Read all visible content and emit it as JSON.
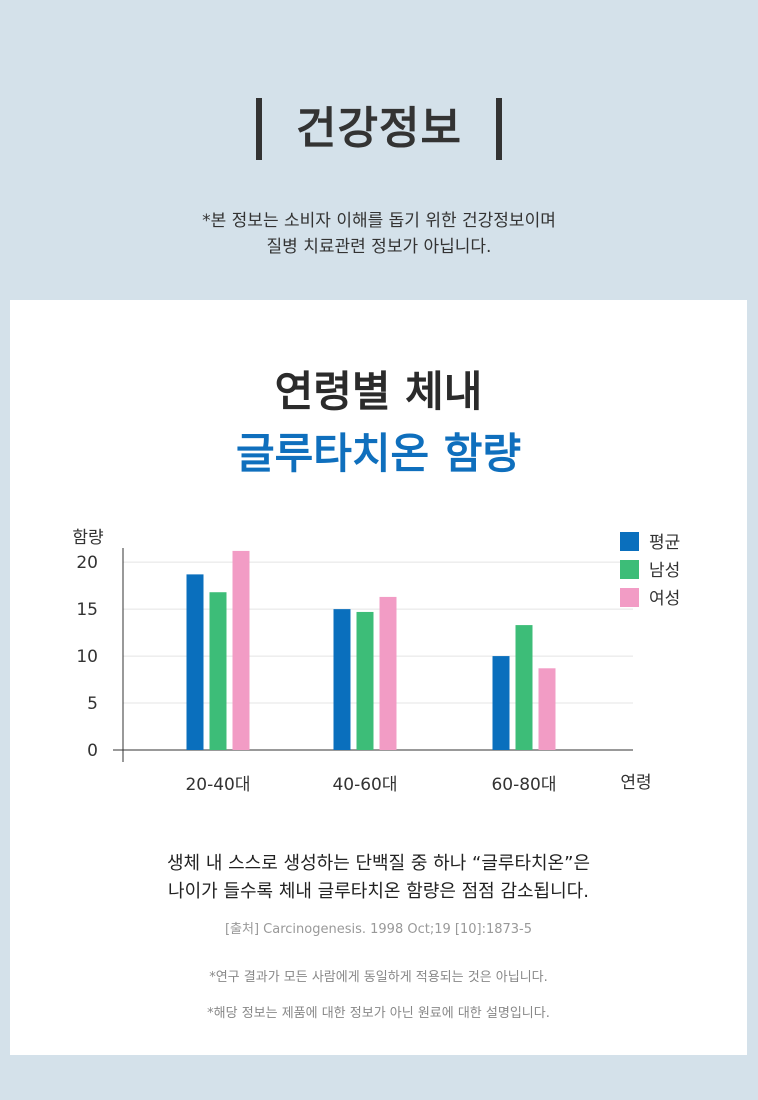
{
  "header": {
    "title": "건강정보",
    "notice_line1": "*본 정보는 소비자 이해를 돕기 위한 건강정보이며",
    "notice_line2": "질병 치료관련 정보가 아닙니다."
  },
  "card": {
    "heading_line1": "연령별 체내",
    "heading_line2": "글루타치온 함량",
    "description_line1": "생체 내 스스로 생성하는 단백질 중 하나 “글루타치온”은",
    "description_line2": "나이가 들수록 체내 글루타치온 함량은 점점 감소됩니다.",
    "source": "[출처] Carcinogenesis. 1998 Oct;19 [10]:1873-5",
    "note1": "*연구 결과가 모든 사람에게 동일하게 적용되는 것은 아닙니다.",
    "note2": "*해당 정보는 제품에 대한 정보가 아닌 원료에 대한 설명입니다."
  },
  "colors": {
    "background": "#d4e1ea",
    "accent_blue": "#0f6fbd"
  },
  "chart_data": {
    "type": "bar",
    "title": "",
    "xlabel": "연령",
    "ylabel": "함량",
    "categories": [
      "20-40대",
      "40-60대",
      "60-80대"
    ],
    "yticks": [
      0,
      5,
      10,
      15,
      20
    ],
    "ylim": [
      0,
      23
    ],
    "grid": true,
    "legend_position": "top-right",
    "series": [
      {
        "name": "평균",
        "color": "#0a6fbd",
        "values": [
          18.7,
          15.0,
          10.0
        ]
      },
      {
        "name": "남성",
        "color": "#3dbd78",
        "values": [
          16.8,
          14.7,
          13.3
        ]
      },
      {
        "name": "여성",
        "color": "#f29cc5",
        "values": [
          21.2,
          16.3,
          8.7
        ]
      }
    ]
  }
}
